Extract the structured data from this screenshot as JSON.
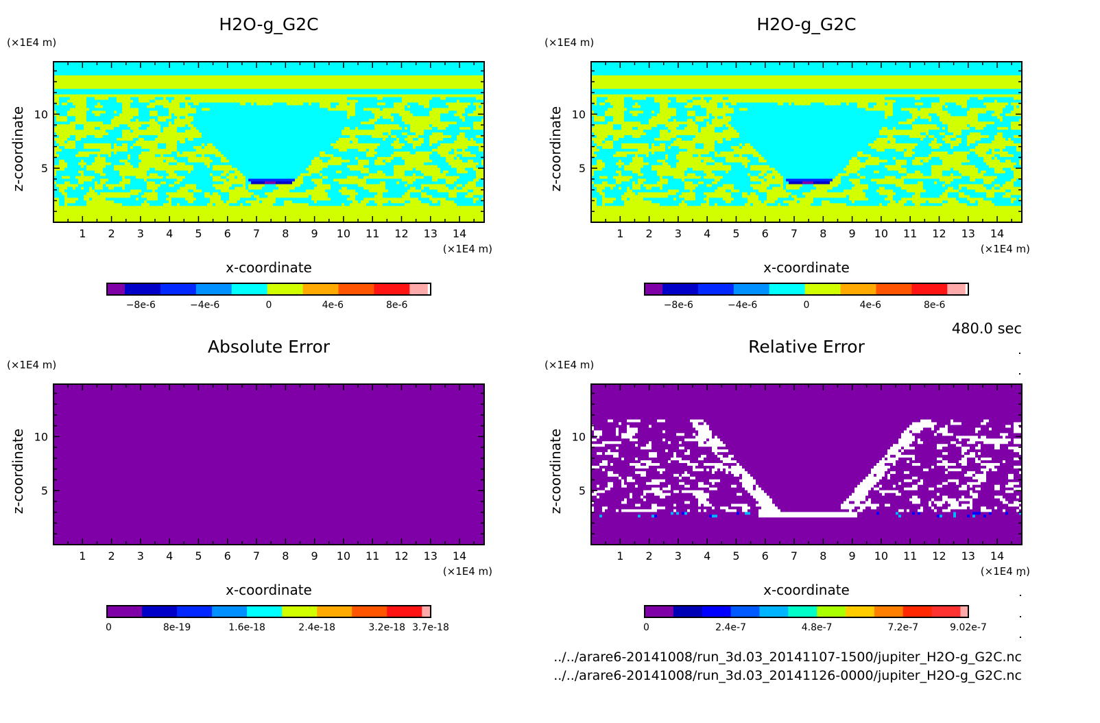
{
  "time_label": "480.0 sec",
  "file_paths": [
    "../../arare6-20141008/run_3d.03_20141107-1500/jupiter_H2O-g_G2C.nc",
    "../../arare6-20141008/run_3d.03_20141126-0000/jupiter_H2O-g_G2C.nc"
  ],
  "chart_data": [
    {
      "type": "heatmap",
      "id": "top-left",
      "title": "H2O-g_G2C",
      "xlabel": "x-coordinate",
      "ylabel": "z-coordinate",
      "x_unit": "(x1E4 m)",
      "y_unit": "(x1E4 m)",
      "xlim": [
        0,
        14.85
      ],
      "ylim": [
        0,
        14.85
      ],
      "xticks": [
        1,
        2,
        3,
        4,
        5,
        6,
        7,
        8,
        9,
        10,
        11,
        12,
        13,
        14
      ],
      "yticks": [
        5,
        10
      ],
      "field": "model_a",
      "colorbar": {
        "colors": [
          "#8000a8",
          "#0000c8",
          "#0028ff",
          "#0090ff",
          "#00ffff",
          "#d2ff00",
          "#ffaa00",
          "#ff5500",
          "#ff1414",
          "#ffaaaa"
        ],
        "range": [
          -1e-05,
          1e-05
        ],
        "tick_labels": [
          "-8e-6",
          "-4e-6",
          "0",
          "4e-6",
          "8e-6"
        ],
        "tick_values": [
          -8e-06,
          -4e-06,
          0,
          4e-06,
          8e-06
        ]
      }
    },
    {
      "type": "heatmap",
      "id": "top-right",
      "title": "H2O-g_G2C",
      "xlabel": "x-coordinate",
      "ylabel": "z-coordinate",
      "x_unit": "(x1E4 m)",
      "y_unit": "(x1E4 m)",
      "xlim": [
        0,
        14.85
      ],
      "ylim": [
        0,
        14.85
      ],
      "xticks": [
        1,
        2,
        3,
        4,
        5,
        6,
        7,
        8,
        9,
        10,
        11,
        12,
        13,
        14
      ],
      "yticks": [
        5,
        10
      ],
      "field": "model_a",
      "colorbar": {
        "colors": [
          "#8000a8",
          "#0000c8",
          "#0028ff",
          "#0090ff",
          "#00ffff",
          "#d2ff00",
          "#ffaa00",
          "#ff5500",
          "#ff1414",
          "#ffaaaa"
        ],
        "range": [
          -1e-05,
          1e-05
        ],
        "tick_labels": [
          "-8e-6",
          "-4e-6",
          "0",
          "4e-6",
          "8e-6"
        ],
        "tick_values": [
          -8e-06,
          -4e-06,
          0,
          4e-06,
          8e-06
        ]
      }
    },
    {
      "type": "heatmap",
      "id": "bottom-left",
      "title": "Absolute Error",
      "xlabel": "x-coordinate",
      "ylabel": "z-coordinate",
      "x_unit": "(x1E4 m)",
      "y_unit": "(x1E4 m)",
      "xlim": [
        0,
        14.85
      ],
      "ylim": [
        0,
        14.85
      ],
      "xticks": [
        1,
        2,
        3,
        4,
        5,
        6,
        7,
        8,
        9,
        10,
        11,
        12,
        13,
        14
      ],
      "yticks": [
        5,
        10
      ],
      "field": "abs_error",
      "colorbar": {
        "colors": [
          "#8000a8",
          "#0000c8",
          "#0028ff",
          "#0090ff",
          "#00ffff",
          "#d2ff00",
          "#ffaa00",
          "#ff5500",
          "#ff1414",
          "#ffaaaa"
        ],
        "range": [
          0,
          3.7e-18
        ],
        "segment_bounds": [
          0,
          4e-19,
          8e-19,
          1.2e-18,
          1.6e-18,
          2e-18,
          2.4e-18,
          2.8e-18,
          3.2e-18,
          3.6e-18,
          3.7e-18
        ],
        "tick_labels": [
          "0",
          "8e-19",
          "1.6e-18",
          "2.4e-18",
          "3.2e-18",
          "3.7e-18"
        ],
        "tick_values": [
          0,
          8e-19,
          1.6e-18,
          2.4e-18,
          3.2e-18,
          3.7e-18
        ]
      }
    },
    {
      "type": "heatmap",
      "id": "bottom-right",
      "title": "Relative Error",
      "xlabel": "x-coordinate",
      "ylabel": "z-coordinate",
      "x_unit": "(x1E4 m)",
      "y_unit": "(x1E4 m)",
      "xlim": [
        0,
        14.85
      ],
      "ylim": [
        0,
        14.85
      ],
      "xticks": [
        1,
        2,
        3,
        4,
        5,
        6,
        7,
        8,
        9,
        10,
        11,
        12,
        13,
        14
      ],
      "yticks": [
        5,
        10
      ],
      "field": "rel_error",
      "colorbar": {
        "colors": [
          "#8000a8",
          "#0000b4",
          "#0000ff",
          "#005aff",
          "#00b4ff",
          "#00ffc8",
          "#aaff00",
          "#ffcc00",
          "#ff8000",
          "#ff2800",
          "#ff3232",
          "#ffaaaa"
        ],
        "range": [
          0,
          9.02e-07
        ],
        "segment_bounds": [
          0,
          8e-08,
          1.6e-07,
          2.4e-07,
          3.2e-07,
          4e-07,
          4.8e-07,
          5.6e-07,
          6.4e-07,
          7.2e-07,
          8e-07,
          8.8e-07,
          9.02e-07
        ],
        "tick_labels": [
          "0",
          "2.4e-7",
          "4.8e-7",
          "7.2e-7",
          "9.02e-7"
        ],
        "tick_values": [
          0,
          2.4e-07,
          4.8e-07,
          7.2e-07,
          9.02e-07
        ]
      }
    }
  ]
}
